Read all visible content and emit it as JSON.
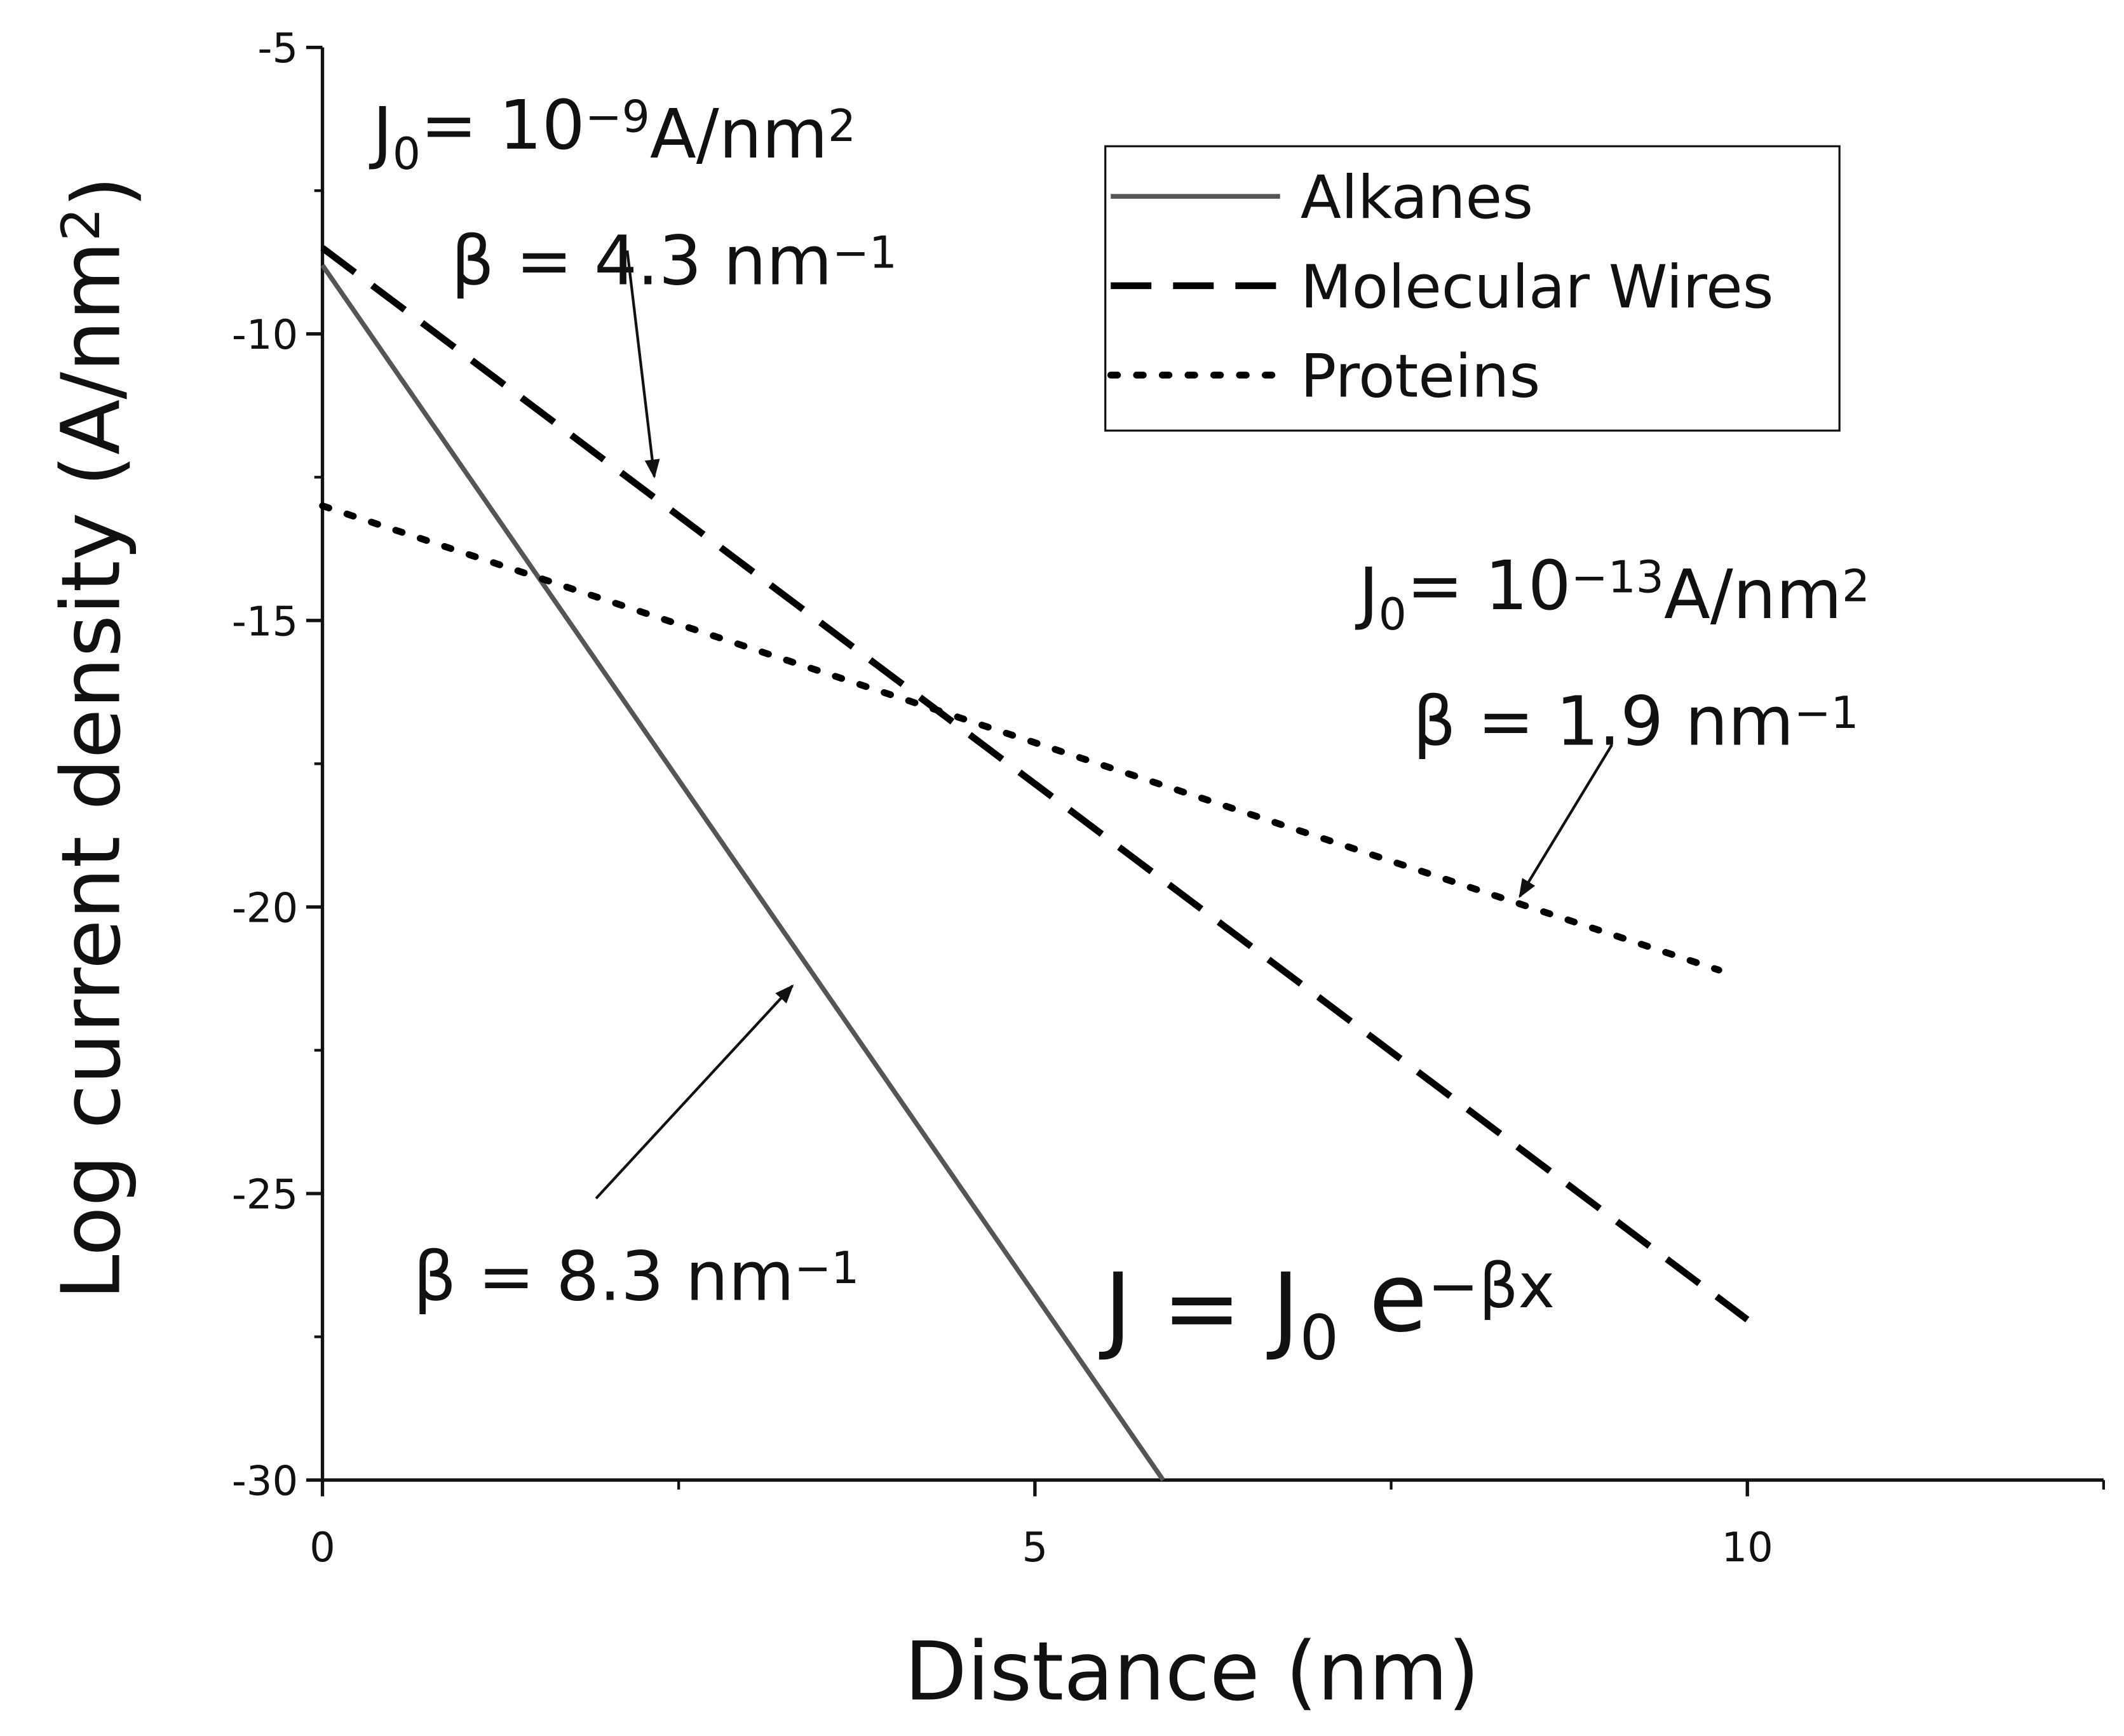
{
  "chart_data": {
    "type": "line",
    "xlabel": "Distance (nm)",
    "ylabel": [
      {
        "text": "Log current density (A/nm"
      },
      {
        "text": "2",
        "shift": "super"
      },
      {
        "text": ")"
      }
    ],
    "xlim": [
      0,
      12.5
    ],
    "ylim": [
      -30,
      -5
    ],
    "xticks": [
      0,
      5,
      10
    ],
    "yticks": [
      -30,
      -25,
      -20,
      -15,
      -10,
      -5
    ],
    "x_minor_ticks": [
      2.5,
      7.5,
      12.5
    ],
    "y_minor_ticks": [
      -27.5,
      -22.5,
      -17.5,
      -12.5,
      -7.5
    ],
    "legend": "top-right",
    "series": [
      {
        "name": "Alkanes",
        "color": "#555555",
        "style": "solid",
        "x": [
          0,
          5.9
        ],
        "values": [
          -8.8,
          -30
        ]
      },
      {
        "name": "Molecular Wires",
        "color": "#000000",
        "style": "dashed",
        "x": [
          0,
          10
        ],
        "values": [
          -8.5,
          -27.2
        ]
      },
      {
        "name": "Proteins",
        "color": "#000000",
        "style": "dotted",
        "x": [
          0,
          9.8
        ],
        "values": [
          -13,
          -21.1
        ]
      }
    ],
    "annotations": [
      {
        "segments": [
          {
            "text": "J"
          },
          {
            "text": "0",
            "shift": "sub"
          },
          {
            "text": "= 10"
          },
          {
            "text": "−9",
            "shift": "super"
          },
          {
            "text": "A/nm"
          },
          {
            "text": "2",
            "shift": "super"
          }
        ]
      },
      {
        "segments": [
          {
            "text": "β = 4.3 nm"
          },
          {
            "text": "−1",
            "shift": "super"
          }
        ]
      },
      {
        "segments": [
          {
            "text": "J"
          },
          {
            "text": "0",
            "shift": "sub"
          },
          {
            "text": "= 10"
          },
          {
            "text": "−13",
            "shift": "super"
          },
          {
            "text": "A/nm"
          },
          {
            "text": "2",
            "shift": "super"
          }
        ]
      },
      {
        "segments": [
          {
            "text": "β = 1.9 nm"
          },
          {
            "text": "−1",
            "shift": "super"
          }
        ]
      },
      {
        "segments": [
          {
            "text": "β = 8.3 nm"
          },
          {
            "text": "−1",
            "shift": "super"
          }
        ]
      },
      {
        "segments": [
          {
            "text": "J = J"
          },
          {
            "text": "0",
            "shift": "sub"
          },
          {
            "text": " e"
          },
          {
            "text": "−βx",
            "shift": "super"
          }
        ]
      }
    ]
  }
}
